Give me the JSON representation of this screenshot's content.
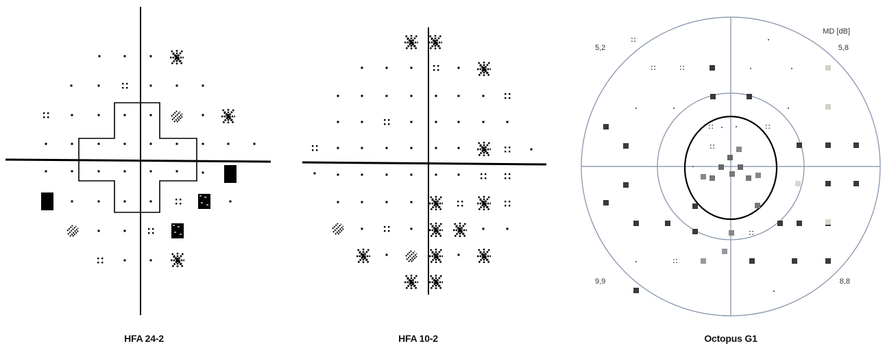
{
  "hfa24": {
    "caption": "HFA 24-2"
  },
  "hfa10": {
    "caption": "HFA 10-2"
  },
  "octopus": {
    "caption": "Octopus G1",
    "md_header": "MD [dB]",
    "quadrant_md": {
      "upper_left": "5,2",
      "upper_right": "5,8",
      "lower_left": "9,9",
      "lower_right": "8,8"
    }
  }
}
